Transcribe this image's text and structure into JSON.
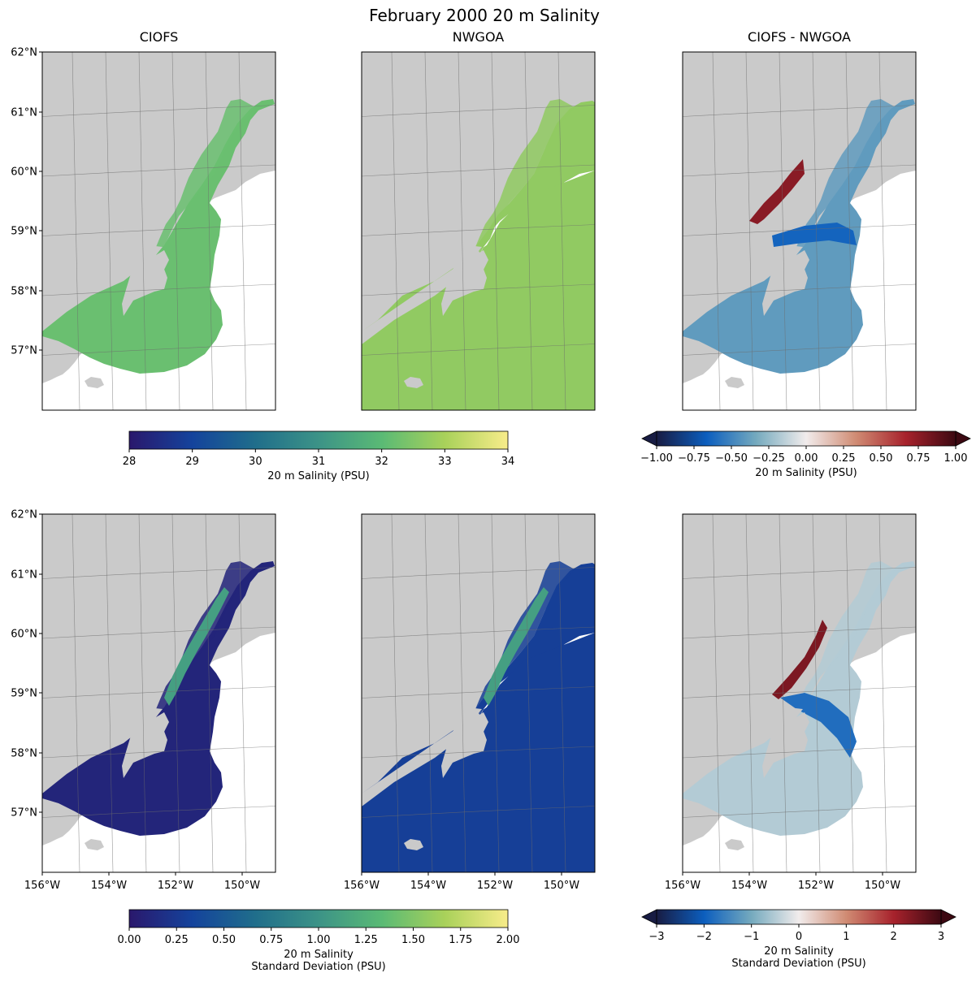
{
  "title": "February 2000 20 m Salinity",
  "panels": [
    {
      "title": "CIOFS"
    },
    {
      "title": "NWGOA"
    },
    {
      "title": "CIOFS - NWGOA"
    }
  ],
  "lat_ticks": [
    "62°N",
    "61°N",
    "60°N",
    "59°N",
    "58°N",
    "57°N"
  ],
  "lon_ticks": [
    "156°W",
    "154°W",
    "152°W",
    "150°W"
  ],
  "colorbars": [
    {
      "ticks": [
        "28",
        "29",
        "30",
        "31",
        "32",
        "33",
        "34"
      ],
      "label": "20 m Salinity (PSU)",
      "range": [
        28,
        34
      ],
      "colormap": "haline"
    },
    {
      "ticks": [
        "−1.00",
        "−0.75",
        "−0.50",
        "−0.25",
        "0.00",
        "0.25",
        "0.50",
        "0.75",
        "1.00"
      ],
      "label": "20 m Salinity (PSU)",
      "range": [
        -1,
        1
      ],
      "colormap": "balance",
      "extend": "both"
    },
    {
      "ticks": [
        "0.00",
        "0.25",
        "0.50",
        "0.75",
        "1.00",
        "1.25",
        "1.50",
        "1.75",
        "2.00"
      ],
      "label": [
        "20 m Salinity",
        "Standard Deviation (PSU)"
      ],
      "range": [
        0,
        2
      ],
      "colormap": "haline"
    },
    {
      "ticks": [
        "−3",
        "−2",
        "−1",
        "0",
        "1",
        "2",
        "3"
      ],
      "label": [
        "20 m Salinity",
        "Standard Deviation (PSU)"
      ],
      "range": [
        -3,
        3
      ],
      "colormap": "balance",
      "extend": "both"
    }
  ],
  "colors": {
    "land": "#cacaca",
    "haline": [
      "#2a186c",
      "#14439c",
      "#206e8b",
      "#3c9387",
      "#5aba75",
      "#a9d15a",
      "#f8ec8a"
    ],
    "balance": [
      "#181c43",
      "#0c5ebe",
      "#75aabe",
      "#f1ecec",
      "#d08b73",
      "#a7222c",
      "#3c0912"
    ]
  },
  "chart_data": [
    {
      "type": "heatmap",
      "panel": "CIOFS",
      "variable": "20 m Salinity mean",
      "units": "PSU",
      "lon_range": [
        -156,
        -149
      ],
      "lat_range": [
        56,
        62
      ],
      "typical_value": 32.2
    },
    {
      "type": "heatmap",
      "panel": "NWGOA",
      "variable": "20 m Salinity mean",
      "units": "PSU",
      "lon_range": [
        -156,
        -149
      ],
      "lat_range": [
        56,
        62
      ],
      "typical_value": 32.7
    },
    {
      "type": "heatmap",
      "panel": "CIOFS - NWGOA",
      "variable": "20 m Salinity mean difference",
      "units": "PSU",
      "lon_range": [
        -156,
        -149
      ],
      "lat_range": [
        56,
        62
      ],
      "typical_value": -0.4
    },
    {
      "type": "heatmap",
      "panel": "CIOFS",
      "variable": "20 m Salinity standard deviation",
      "units": "PSU",
      "lon_range": [
        -156,
        -149
      ],
      "lat_range": [
        56,
        62
      ],
      "typical_value": 0.1
    },
    {
      "type": "heatmap",
      "panel": "NWGOA",
      "variable": "20 m Salinity standard deviation",
      "units": "PSU",
      "lon_range": [
        -156,
        -149
      ],
      "lat_range": [
        56,
        62
      ],
      "typical_value": 0.3
    },
    {
      "type": "heatmap",
      "panel": "CIOFS - NWGOA",
      "variable": "20 m Salinity standard deviation difference",
      "units": "PSU",
      "lon_range": [
        -156,
        -149
      ],
      "lat_range": [
        56,
        62
      ],
      "typical_value": -0.5
    }
  ]
}
